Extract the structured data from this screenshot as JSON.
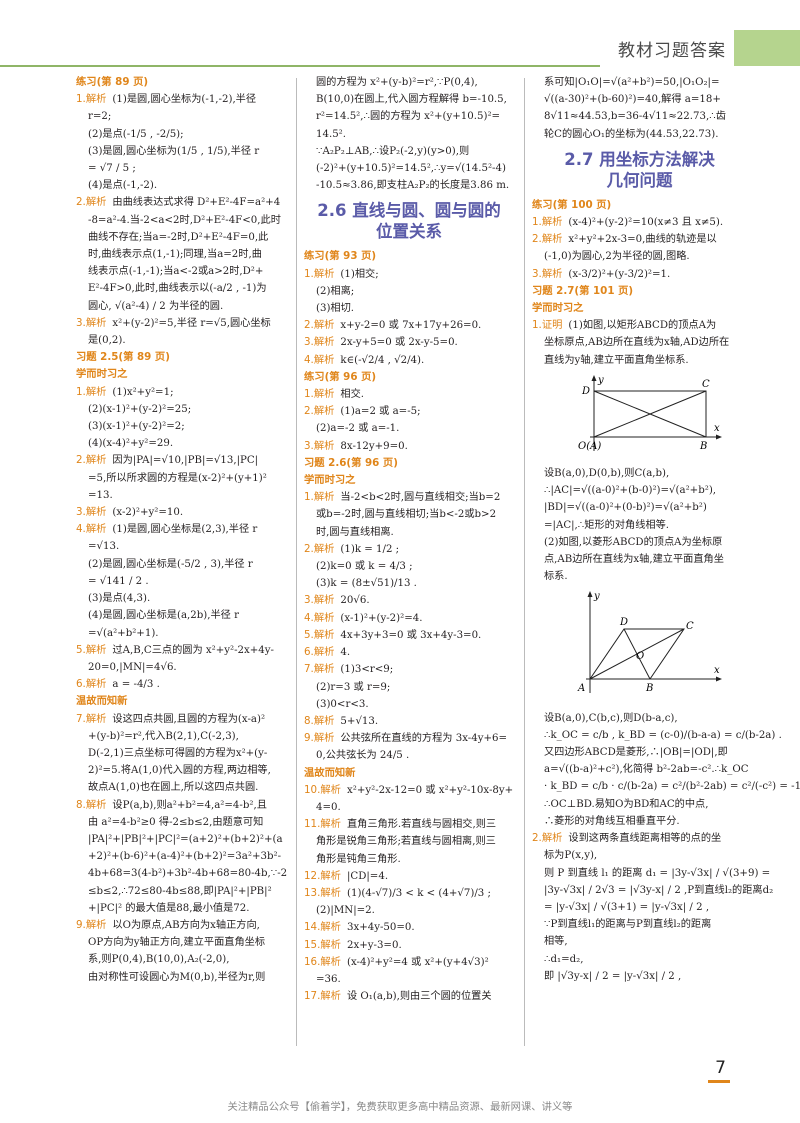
{
  "header": {
    "title": "教材习题答案"
  },
  "page_number": "7",
  "footer": "关注精品公众号【偷着学】，免费获取更多高中精品资源、最新网课、讲义等",
  "col1": [
    {
      "k": "tag",
      "t": "练习(第 89 页)"
    },
    {
      "k": "jx",
      "t": "(1)是圆,圆心坐标为(-1,-2),半径"
    },
    {
      "k": "in",
      "t": "r=2;"
    },
    {
      "k": "in",
      "t": "(2)是点(-1/5 , -2/5);"
    },
    {
      "k": "in",
      "t": "(3)是圆,圆心坐标为(1/5 , 1/5),半径 r"
    },
    {
      "k": "in",
      "t": "= √7 / 5 ;"
    },
    {
      "k": "in",
      "t": "(4)是点(-1,-2)."
    },
    {
      "k": "jx",
      "t": "由曲线表达式求得 D²+E²-4F=a²+4"
    },
    {
      "k": "in",
      "t": "-8=a²-4.当-2<a<2时,D²+E²-4F<0,此时"
    },
    {
      "k": "in",
      "t": "曲线不存在;当a=-2时,D²+E²-4F=0,此"
    },
    {
      "k": "in",
      "t": "时,曲线表示点(1,-1);同理,当a=2时,曲"
    },
    {
      "k": "in",
      "t": "线表示点(-1,-1);当a<-2或a>2时,D²+"
    },
    {
      "k": "in",
      "t": "E²-4F>0,此时,曲线表示以(-a/2 , -1)为"
    },
    {
      "k": "in",
      "t": "圆心, √(a²-4) / 2 为半径的圆."
    },
    {
      "k": "jx",
      "t": "x²+(y-2)²=5,半径 r=√5,圆心坐标"
    },
    {
      "k": "in",
      "t": "是(0,2)."
    },
    {
      "k": "tag",
      "t": "习题 2.5(第 89 页)"
    },
    {
      "k": "sec",
      "t": "学而时习之"
    },
    {
      "k": "jx",
      "t": "(1)x²+y²=1;"
    },
    {
      "k": "in",
      "t": "(2)(x-1)²+(y-2)²=25;"
    },
    {
      "k": "in",
      "t": "(3)(x-1)²+(y-2)²=2;"
    },
    {
      "k": "in",
      "t": "(4)(x-4)²+y²=29."
    },
    {
      "k": "jx",
      "t": "因为|PA|=√10,|PB|=√13,|PC|"
    },
    {
      "k": "in",
      "t": "=5,所以所求圆的方程是(x-2)²+(y+1)²"
    },
    {
      "k": "in",
      "t": "=13."
    },
    {
      "k": "jx",
      "t": "(x-2)²+y²=10."
    },
    {
      "k": "jx",
      "t": "(1)是圆,圆心坐标是(2,3),半径 r"
    },
    {
      "k": "in",
      "t": "=√13."
    },
    {
      "k": "in",
      "t": "(2)是圆,圆心坐标是(-5/2 , 3),半径 r"
    },
    {
      "k": "in",
      "t": "= √141 / 2 ."
    },
    {
      "k": "in",
      "t": "(3)是点(4,3)."
    },
    {
      "k": "in",
      "t": "(4)是圆,圆心坐标是(a,2b),半径 r"
    },
    {
      "k": "in",
      "t": "=√(a²+b²+1)."
    },
    {
      "k": "jx",
      "t": "过A,B,C三点的圆为 x²+y²-2x+4y-"
    },
    {
      "k": "in",
      "t": "20=0,|MN|=4√6."
    },
    {
      "k": "jx",
      "t": "a = -4/3 ."
    },
    {
      "k": "sec",
      "t": "温故而知新"
    },
    {
      "k": "jx",
      "t": "设这四点共圆,且圆的方程为(x-a)²"
    },
    {
      "k": "in",
      "t": "+(y-b)²=r²,代入B(2,1),C(-2,3),"
    },
    {
      "k": "in",
      "t": "D(-2,1)三点坐标可得圆的方程为x²+(y-"
    },
    {
      "k": "in",
      "t": "2)²=5.将A(1,0)代入圆的方程,两边相等,"
    },
    {
      "k": "in",
      "t": "故点A(1,0)也在圆上,所以这四点共圆."
    },
    {
      "k": "jx",
      "t": "设P(a,b),则a²+b²=4,a²=4-b²,且"
    },
    {
      "k": "in",
      "t": "由 a²=4-b²≥0 得-2≤b≤2,由题意可知"
    },
    {
      "k": "in",
      "t": "|PA|²+|PB|²+|PC|²=(a+2)²+(b+2)²+(a"
    },
    {
      "k": "in",
      "t": "+2)²+(b-6)²+(a-4)²+(b+2)²=3a²+3b²-"
    },
    {
      "k": "in",
      "t": "4b+68=3(4-b²)+3b²-4b+68=80-4b,∵-2"
    },
    {
      "k": "in",
      "t": "≤b≤2,∴72≤80-4b≤88,即|PA|²+|PB|²"
    },
    {
      "k": "in",
      "t": "+|PC|² 的最大值是88,最小值是72."
    },
    {
      "k": "jx",
      "t": "以O为原点,AB方向为x轴正方向,"
    },
    {
      "k": "in",
      "t": "OP方向为y轴正方向,建立平面直角坐标"
    },
    {
      "k": "in",
      "t": "系,则P(0,4),B(10,0),A₂(-2,0),"
    },
    {
      "k": "in",
      "t": "由对称性可设圆心为M(0,b),半径为r,则"
    }
  ],
  "col2": [
    {
      "k": "in",
      "t": "圆的方程为 x²+(y-b)²=r²,∵P(0,4),"
    },
    {
      "k": "in",
      "t": "B(10,0)在圆上,代入圆方程解得 b=-10.5,"
    },
    {
      "k": "in",
      "t": "r²=14.5²,∴圆的方程为 x²+(y+10.5)²="
    },
    {
      "k": "in",
      "t": "14.5²."
    },
    {
      "k": "in",
      "t": "∵A₂P₂⊥AB,∴设P₂(-2,y)(y>0),则"
    },
    {
      "k": "in",
      "t": "(-2)²+(y+10.5)²=14.5²,∴y=√(14.5²-4)"
    },
    {
      "k": "in",
      "t": "-10.5≈3.86,即支柱A₂P₂的长度是3.86 m."
    },
    {
      "k": "chap",
      "t": "2.6  直线与圆、圆与圆的",
      "t2": "位置关系"
    },
    {
      "k": "tag",
      "t": "练习(第 93 页)"
    },
    {
      "k": "jx",
      "t": "(1)相交;"
    },
    {
      "k": "in",
      "t": "(2)相离;"
    },
    {
      "k": "in",
      "t": "(3)相切."
    },
    {
      "k": "jx",
      "t": "x+y-2=0 或 7x+17y+26=0."
    },
    {
      "k": "jx",
      "t": "2x-y+5=0 或 2x-y-5=0."
    },
    {
      "k": "jx",
      "t": "k∈(-√2/4 , √2/4)."
    },
    {
      "k": "tag",
      "t": "练习(第 96 页)"
    },
    {
      "k": "jx",
      "t": "相交."
    },
    {
      "k": "jx",
      "t": "(1)a=2 或 a=-5;"
    },
    {
      "k": "in",
      "t": "(2)a=-2 或 a=-1."
    },
    {
      "k": "jx",
      "t": "8x-12y+9=0."
    },
    {
      "k": "tag",
      "t": "习题 2.6(第 96 页)"
    },
    {
      "k": "sec",
      "t": "学而时习之"
    },
    {
      "k": "jx",
      "t": "当-2<b<2时,圆与直线相交;当b=2"
    },
    {
      "k": "in",
      "t": "或b=-2时,圆与直线相切;当b<-2或b>2"
    },
    {
      "k": "in",
      "t": "时,圆与直线相离."
    },
    {
      "k": "jx",
      "t": "(1)k = 1/2 ;"
    },
    {
      "k": "in",
      "t": "(2)k=0 或 k = 4/3 ;"
    },
    {
      "k": "in",
      "t": "(3)k = (8±√51)/13 ."
    },
    {
      "k": "jx",
      "t": "20√6."
    },
    {
      "k": "jx",
      "t": "(x-1)²+(y-2)²=4."
    },
    {
      "k": "jx",
      "t": "4x+3y+3=0 或 3x+4y-3=0."
    },
    {
      "k": "jx",
      "t": "4."
    },
    {
      "k": "jx",
      "t": "(1)3<r<9;"
    },
    {
      "k": "in",
      "t": "(2)r=3 或 r=9;"
    },
    {
      "k": "in",
      "t": "(3)0<r<3."
    },
    {
      "k": "jx",
      "t": "5+√13."
    },
    {
      "k": "jx",
      "t": "公共弦所在直线的方程为 3x-4y+6="
    },
    {
      "k": "in",
      "t": "0,公共弦长为 24/5 ."
    },
    {
      "k": "sec",
      "t": "温故而知新"
    },
    {
      "k": "jx",
      "t": "x²+y²-2x-12=0 或 x²+y²-10x-8y+"
    },
    {
      "k": "in",
      "t": "4=0."
    },
    {
      "k": "jx",
      "t": "直角三角形.若直线与圆相交,则三"
    },
    {
      "k": "in",
      "t": "角形是锐角三角形;若直线与圆相离,则三"
    },
    {
      "k": "in",
      "t": "角形是钝角三角形."
    },
    {
      "k": "jx",
      "t": "|CD|=4."
    },
    {
      "k": "jx",
      "t": "(1)(4-√7)/3 < k < (4+√7)/3 ;"
    },
    {
      "k": "in",
      "t": "(2)|MN|=2."
    },
    {
      "k": "jx",
      "t": "3x+4y-50=0."
    },
    {
      "k": "jx",
      "t": "2x+y-3=0."
    },
    {
      "k": "jx",
      "t": "(x-4)²+y²=4 或 x²+(y+4√3)²"
    },
    {
      "k": "in",
      "t": "=36."
    },
    {
      "k": "jx",
      "t": "设 O₁(a,b),则由三个圆的位置关"
    }
  ],
  "col3a": [
    {
      "k": "in",
      "t": "系可知|O₁O|=√(a²+b²)=50,|O₁O₂|="
    },
    {
      "k": "in",
      "t": "√((a-30)²+(b-60)²)=40,解得 a=18+"
    },
    {
      "k": "in",
      "t": "8√11≈44.53,b=36-4√11≈22.73,∴齿"
    },
    {
      "k": "in",
      "t": "轮C的圆心O₁的坐标为(44.53,22.73)."
    },
    {
      "k": "chap",
      "t": "2.7  用坐标方法解决",
      "t2": "几何问题"
    },
    {
      "k": "tag",
      "t": "练习(第 100 页)"
    },
    {
      "k": "jx",
      "t": "(x-4)²+(y-2)²=10(x≠3 且 x≠5)."
    },
    {
      "k": "jx",
      "t": "x²+y²+2x-3=0,曲线的轨迹是以"
    },
    {
      "k": "in",
      "t": "(-1,0)为圆心,2为半径的圆,图略."
    },
    {
      "k": "jx",
      "t": "(x-3/2)²+(y-3/2)²=1."
    },
    {
      "k": "tag",
      "t": "习题 2.7(第 101 页)"
    },
    {
      "k": "sec",
      "t": "学而时习之"
    },
    {
      "k": "zm",
      "t": "(1)如图,以矩形ABCD的顶点A为"
    },
    {
      "k": "in",
      "t": "坐标原点,AB边所在直线为x轴,AD边所在"
    },
    {
      "k": "in",
      "t": "直线为y轴,建立平面直角坐标系."
    }
  ],
  "col3b": [
    {
      "k": "in",
      "t": "设B(a,0),D(0,b),则C(a,b),"
    },
    {
      "k": "in",
      "t": "∴|AC|=√((a-0)²+(b-0)²)=√(a²+b²),"
    },
    {
      "k": "in",
      "t": "|BD|=√((a-0)²+(0-b)²)=√(a²+b²)"
    },
    {
      "k": "in",
      "t": "=|AC|,∴矩形的对角线相等."
    },
    {
      "k": "in",
      "t": "(2)如图,以菱形ABCD的顶点A为坐标原"
    },
    {
      "k": "in",
      "t": "点,AB边所在直线为x轴,建立平面直角坐"
    },
    {
      "k": "in",
      "t": "标系."
    }
  ],
  "col3c": [
    {
      "k": "in",
      "t": "设B(a,0),C(b,c),则D(b-a,c),"
    },
    {
      "k": "in",
      "t": "∴k_OC = c/b , k_BD = (c-0)/(b-a-a) = c/(b-2a) ."
    },
    {
      "k": "in",
      "t": "又四边形ABCD是菱形,∴|OB|=|OD|,即"
    },
    {
      "k": "in",
      "t": "a=√((b-a)²+c²),化简得 b²-2ab=-c².∴k_OC"
    },
    {
      "k": "in",
      "t": "· k_BD = c/b · c/(b-2a) = c²/(b²-2ab) = c²/(-c²) = -1,"
    },
    {
      "k": "in",
      "t": "∴OC⊥BD.易知O为BD和AC的中点,"
    },
    {
      "k": "in",
      "t": "∴菱形的对角线互相垂直平分."
    },
    {
      "k": "jx",
      "t": "设到这两条直线距离相等的点的坐"
    },
    {
      "k": "in",
      "t": "标为P(x,y),"
    },
    {
      "k": "in",
      "t": "则 P 到直线 l₁ 的距离 d₁ = |3y-√3x| / √(3+9) ="
    },
    {
      "k": "in",
      "t": "|3y-√3x| / 2√3 = |√3y-x| / 2 ,P到直线l₂的距离d₂"
    },
    {
      "k": "in",
      "t": "= |y-√3x| / √(3+1) = |y-√3x| / 2 ,"
    },
    {
      "k": "in",
      "t": "∵P到直线l₁的距离与P到直线l₂的距离"
    },
    {
      "k": "in",
      "t": "相等,"
    },
    {
      "k": "in",
      "t": "∴d₁=d₂,"
    },
    {
      "k": "in",
      "t": "即 |√3y-x| / 2 = |y-√3x| / 2 ,"
    }
  ],
  "labels": {
    "c1": [
      "1.解析",
      "2.解析",
      "3.解析",
      "1.解析",
      "2.解析",
      "3.解析",
      "4.解析",
      "5.解析",
      "6.解析",
      "7.解析",
      "8.解析",
      "9.解析"
    ],
    "c2": [
      "1.解析",
      "2.解析",
      "3.解析",
      "4.解析",
      "1.解析",
      "2.解析",
      "3.解析",
      "1.解析",
      "2.解析",
      "3.解析",
      "4.解析",
      "5.解析",
      "6.解析",
      "7.解析",
      "8.解析",
      "9.解析",
      "10.解析",
      "11.解析",
      "12.解析",
      "13.解析",
      "14.解析",
      "15.解析",
      "16.解析",
      "17.解析"
    ],
    "c3": [
      "1.解析",
      "2.解析",
      "3.解析",
      "1.证明",
      "2.解析"
    ]
  },
  "fig1": {
    "labels": [
      "y",
      "D",
      "C",
      "O(A)",
      "B",
      "x"
    ]
  },
  "fig2": {
    "labels": [
      "y",
      "D",
      "C",
      "O",
      "A",
      "B",
      "x"
    ]
  }
}
